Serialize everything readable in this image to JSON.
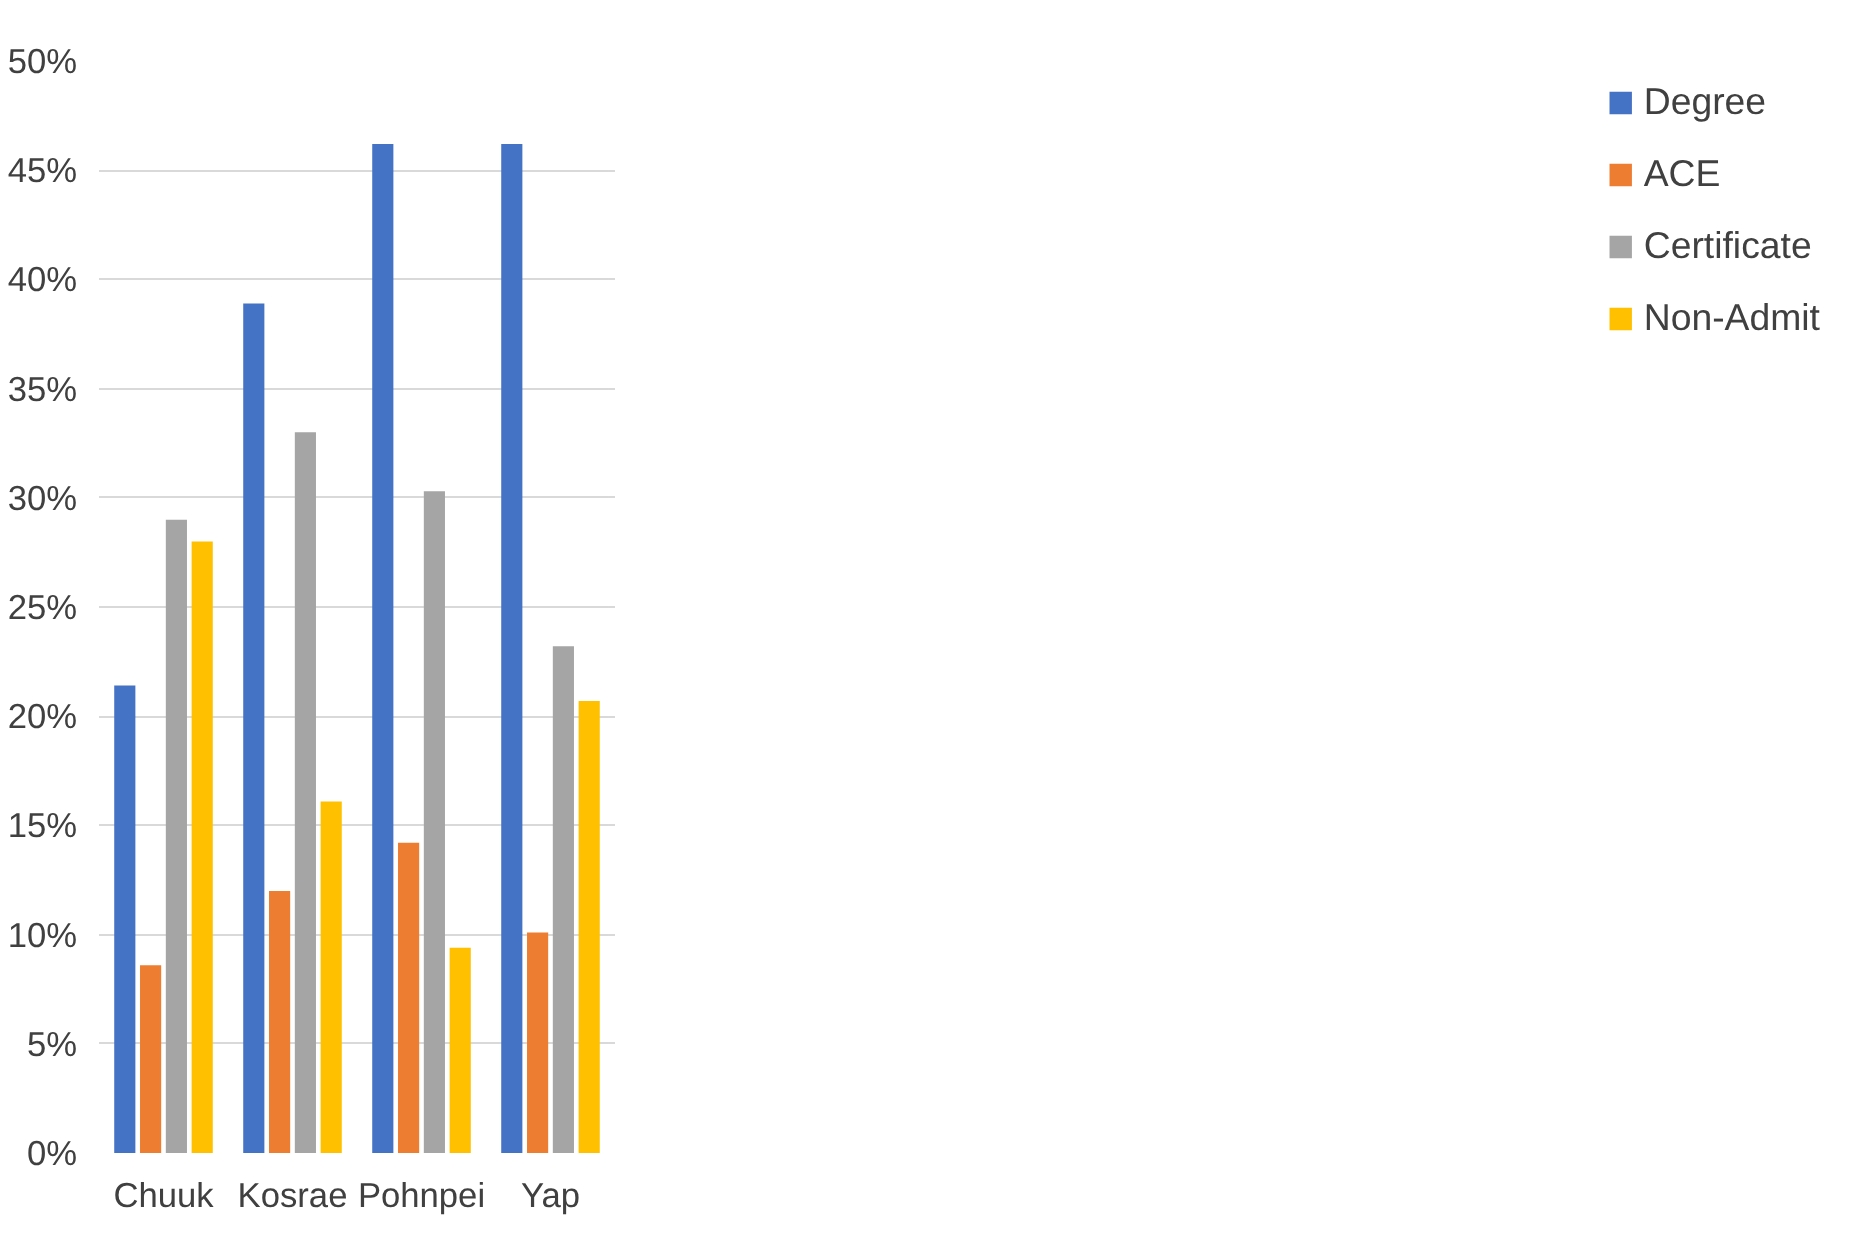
{
  "chart_data": {
    "type": "bar",
    "categories": [
      "Chuuk",
      "Kosrae",
      "Pohnpei",
      "Yap"
    ],
    "series": [
      {
        "name": "Degree",
        "color": "#4472c4",
        "values": [
          21.4,
          38.9,
          46.2,
          46.2
        ]
      },
      {
        "name": "ACE",
        "color": "#ed7d31",
        "values": [
          8.6,
          12.0,
          14.2,
          10.1
        ]
      },
      {
        "name": "Certificate",
        "color": "#a5a5a5",
        "values": [
          29.0,
          33.0,
          30.3,
          23.2
        ]
      },
      {
        "name": "Non-Admit",
        "color": "#ffc000",
        "values": [
          28.0,
          16.1,
          9.4,
          20.7
        ]
      }
    ],
    "ylim": [
      0,
      50
    ],
    "yticks": [
      {
        "value": 0,
        "label": "0%"
      },
      {
        "value": 5,
        "label": "5%"
      },
      {
        "value": 10,
        "label": "10%"
      },
      {
        "value": 15,
        "label": "15%"
      },
      {
        "value": 20,
        "label": "20%"
      },
      {
        "value": 25,
        "label": "25%"
      },
      {
        "value": 30,
        "label": "30%"
      },
      {
        "value": 35,
        "label": "35%"
      },
      {
        "value": 40,
        "label": "40%"
      },
      {
        "value": 45,
        "label": "45%"
      },
      {
        "value": 50,
        "label": "50%"
      }
    ],
    "grid": "y",
    "legend": "right"
  }
}
